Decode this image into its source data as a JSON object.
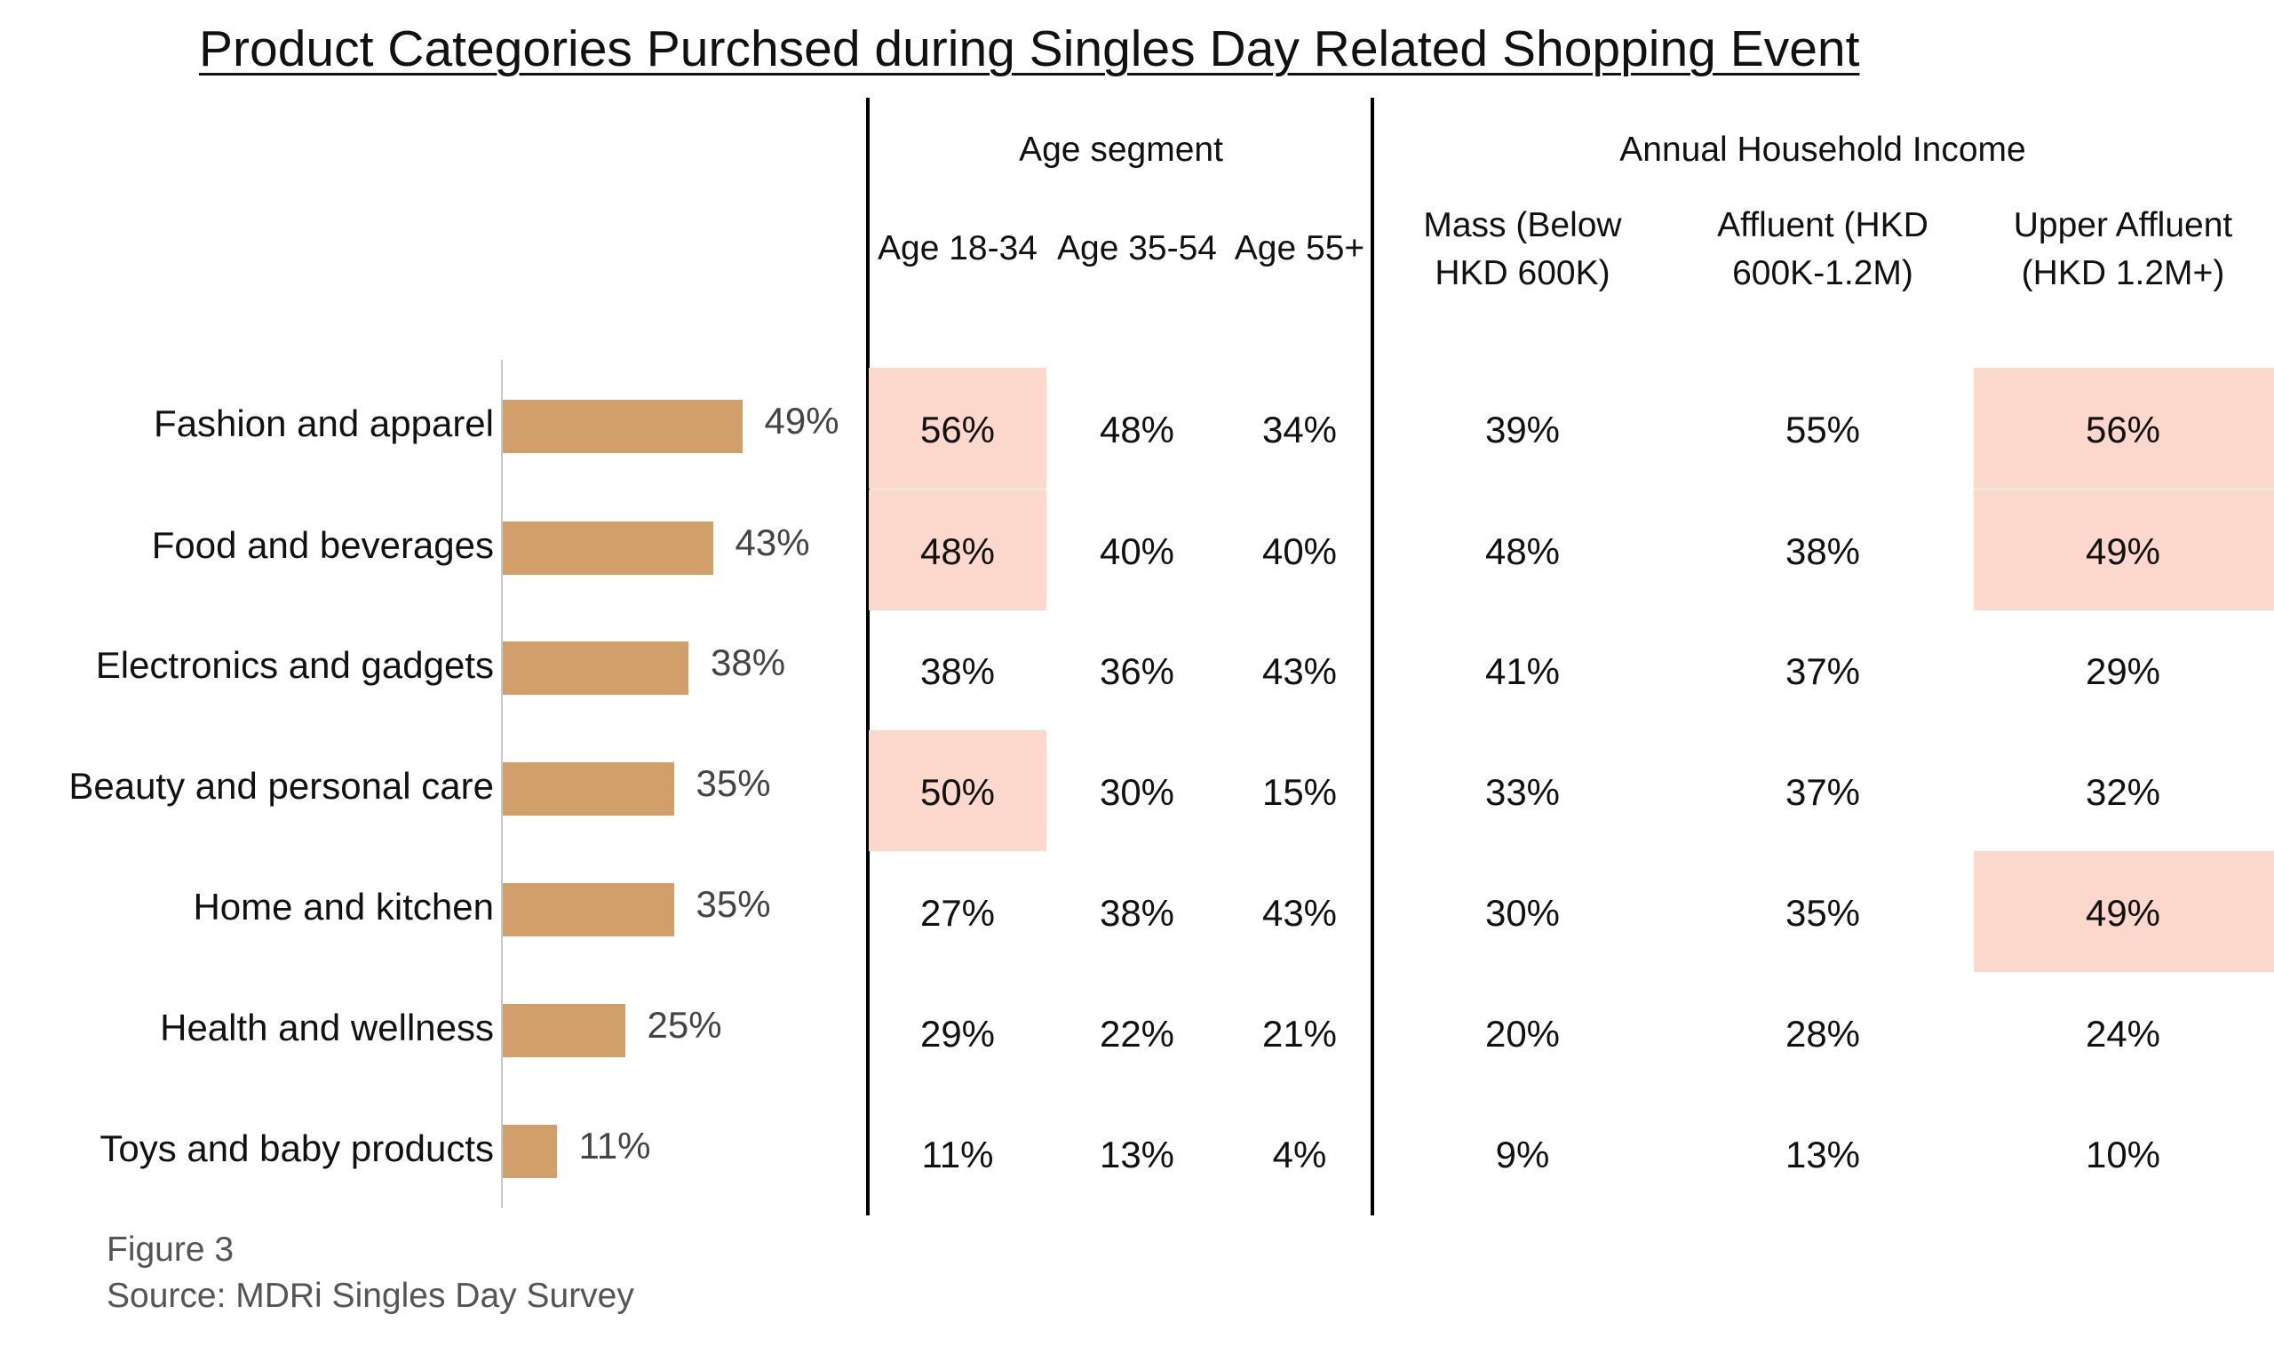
{
  "chart_data": {
    "type": "table",
    "title": "Product Categories Purchsed during Singles Day Related Shopping Event ",
    "overall_bar": {
      "type": "bar",
      "orientation": "horizontal",
      "xlim": [
        0,
        100
      ],
      "categories": [
        "Fashion and apparel",
        "Food and beverages",
        "Electronics and gadgets",
        "Beauty and personal care",
        "Home and kitchen",
        "Health and wellness",
        "Toys and baby products"
      ],
      "values": [
        49,
        43,
        38,
        35,
        35,
        25,
        11
      ],
      "labels": [
        "49%",
        "43%",
        "38%",
        "35%",
        "35%",
        "25%",
        "11%"
      ]
    },
    "groups": [
      {
        "label": "Age segment",
        "columns": [
          "Age 18-34",
          "Age 35-54",
          "Age 55+"
        ]
      },
      {
        "label": "Annual Household Income",
        "columns": [
          "Mass (Below HKD 600K)",
          "Affluent (HKD 600K-1.2M)",
          "Upper Affluent (HKD 1.2M+)"
        ]
      }
    ],
    "column_headers": [
      [
        "Age 18-34"
      ],
      [
        "Age 35-54"
      ],
      [
        "Age 55+"
      ],
      [
        "Mass (Below",
        "HKD 600K)"
      ],
      [
        "Affluent (HKD",
        "600K-1.2M)"
      ],
      [
        "Upper Affluent",
        "(HKD 1.2M+)"
      ]
    ],
    "rows": [
      [
        "56%",
        "48%",
        "34%",
        "39%",
        "55%",
        "56%"
      ],
      [
        "48%",
        "40%",
        "40%",
        "48%",
        "38%",
        "49%"
      ],
      [
        "38%",
        "36%",
        "43%",
        "41%",
        "37%",
        "29%"
      ],
      [
        "50%",
        "30%",
        "15%",
        "33%",
        "37%",
        "32%"
      ],
      [
        "27%",
        "38%",
        "43%",
        "30%",
        "35%",
        "49%"
      ],
      [
        "29%",
        "22%",
        "21%",
        "20%",
        "28%",
        "24%"
      ],
      [
        "11%",
        "13%",
        "4%",
        "9%",
        "13%",
        "10%"
      ]
    ],
    "highlighted_cells": [
      {
        "row": 0,
        "col": 0
      },
      {
        "row": 1,
        "col": 0
      },
      {
        "row": 3,
        "col": 0
      },
      {
        "row": 0,
        "col": 5
      },
      {
        "row": 1,
        "col": 5
      },
      {
        "row": 4,
        "col": 5
      }
    ],
    "colors": {
      "bar": "#d1a06a",
      "highlight": "#fcd8cc",
      "divider": "#000000",
      "axis": "#c8c8c8"
    }
  },
  "footer": {
    "figure": "Figure 3",
    "source": "Source: MDRi Singles Day Survey"
  }
}
